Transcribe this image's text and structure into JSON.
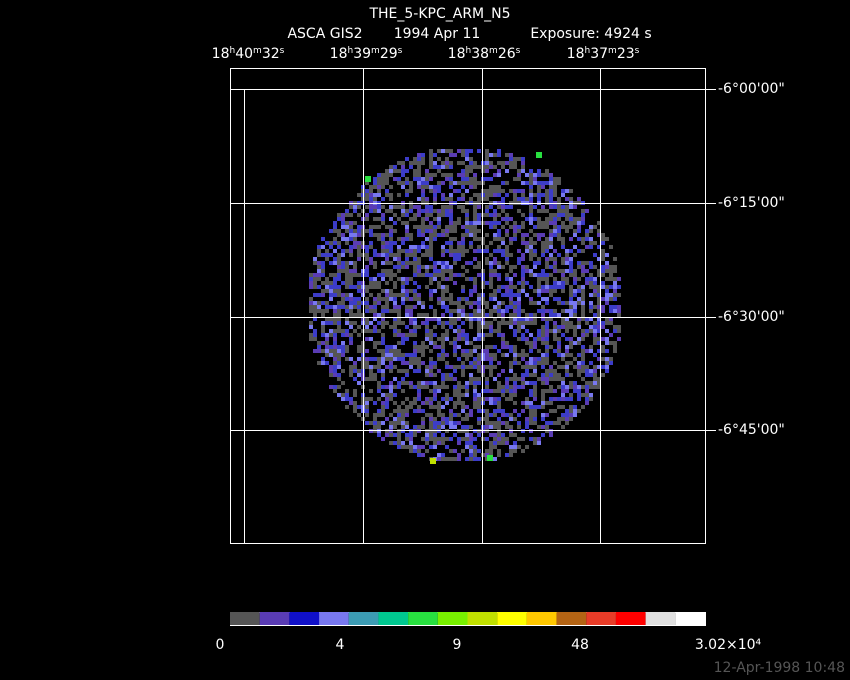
{
  "title": "THE_5-KPC_ARM_N5",
  "subtitle": {
    "instrument": "ASCA GIS2",
    "date": "1994 Apr 11",
    "exposure": "Exposure:  4924 s"
  },
  "ra_labels": [
    "18h40m32s",
    "18h39m29s",
    "18h38m26s",
    "18h37m23s"
  ],
  "dec_labels": [
    "-6°00'00\"",
    "-6°15'00\"",
    "-6°30'00\"",
    "-6°45'00\""
  ],
  "colorbar": {
    "colors": [
      "#555555",
      "#5a3cb4",
      "#1010c8",
      "#7878f0",
      "#3c9cb4",
      "#00c890",
      "#28e040",
      "#78f000",
      "#c0e000",
      "#ffff00",
      "#ffc800",
      "#b46414",
      "#e83c28",
      "#ff0000",
      "#e0e0e0",
      "#ffffff"
    ],
    "labels": [
      "0",
      "4",
      "9",
      "48",
      "3.02×10⁴"
    ]
  },
  "timestamp": "12-Apr-1998 10:48"
}
